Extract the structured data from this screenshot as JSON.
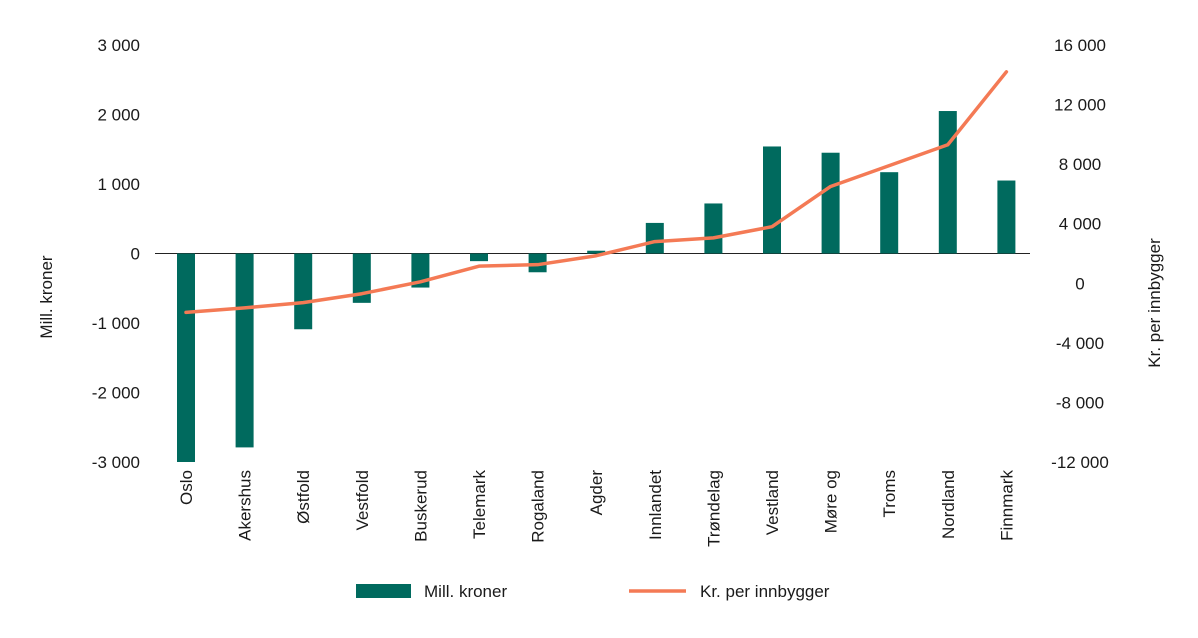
{
  "chart_data": {
    "type": "bar",
    "categories": [
      "Oslo",
      "Akershus",
      "Østfold",
      "Vestfold",
      "Buskerud",
      "Telemark",
      "Rogaland",
      "Agder",
      "Innlandet",
      "Trøndelag",
      "Vestland",
      "Møre og",
      "Troms",
      "Nordland",
      "Finnmark"
    ],
    "series": [
      {
        "name": "Mill. kroner",
        "kind": "bar",
        "axis": "left",
        "color": "#006a5e",
        "values": [
          -3000,
          -2790,
          -1090,
          -710,
          -490,
          -110,
          -270,
          40,
          440,
          720,
          1540,
          1450,
          1170,
          2050,
          1050
        ]
      },
      {
        "name": "Kr. per innbygger",
        "kind": "line",
        "axis": "right",
        "color": "#f47a55",
        "values": [
          -1950,
          -1650,
          -1300,
          -700,
          100,
          1150,
          1250,
          1850,
          2800,
          3050,
          3800,
          6500,
          7900,
          9300,
          14200
        ]
      }
    ],
    "ylabel": "Mill. kroner",
    "ylim": [
      -3000,
      3000
    ],
    "yticks": [
      3000,
      2000,
      1000,
      0,
      -1000,
      -2000,
      -3000
    ],
    "ytick_labels": [
      "3 000",
      "2 000",
      "1 000",
      "0",
      "-1 000",
      "-2 000",
      "-3 000"
    ],
    "y2label": "Kr. per innbygger",
    "y2lim": [
      -12000,
      16000
    ],
    "y2ticks": [
      16000,
      12000,
      8000,
      4000,
      0,
      -4000,
      -8000,
      -12000
    ],
    "y2tick_labels": [
      "16 000",
      "12 000",
      "8 000",
      "4 000",
      "0",
      "-4 000",
      "-8 000",
      "-12 000"
    ],
    "legend": [
      {
        "label": "Mill. kroner",
        "kind": "bar"
      },
      {
        "label": "Kr. per innbygger",
        "kind": "line"
      }
    ],
    "legend_position": "bottom",
    "grid": false
  }
}
